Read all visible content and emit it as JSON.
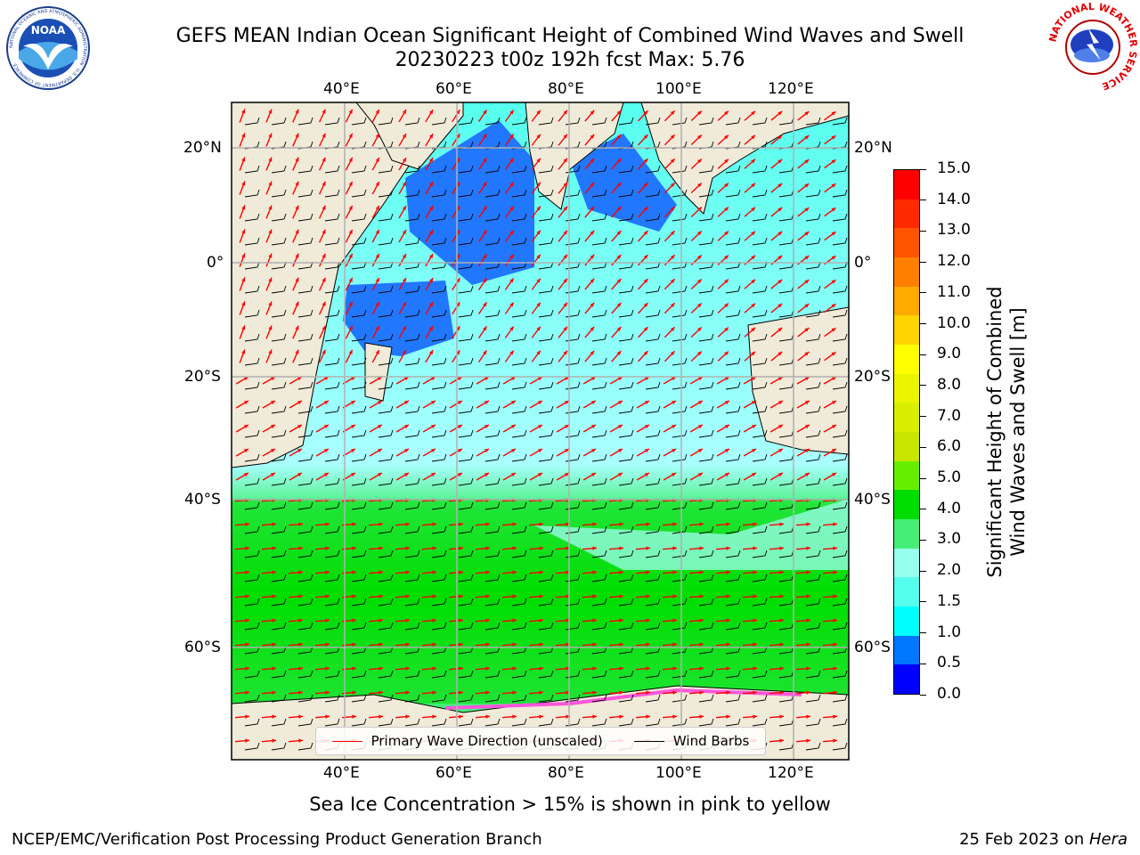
{
  "title": {
    "line1": "GEFS MEAN Indian Ocean Significant Height of Combined Wind Waves and Swell",
    "line2": "20230223 t00z 192h fcst   Max: 5.76"
  },
  "map": {
    "lon_range": [
      20,
      130
    ],
    "lat_range": [
      -72,
      28
    ],
    "lon_ticks": [
      "40°E",
      "60°E",
      "80°E",
      "100°E",
      "120°E"
    ],
    "lat_ticks": [
      "20°N",
      "0°",
      "20°S",
      "40°S",
      "60°S"
    ],
    "legend": [
      {
        "label": "Primary Wave Direction (unscaled)",
        "color": "#ff0000"
      },
      {
        "label": "Wind Barbs",
        "color": "#000000"
      }
    ]
  },
  "colorbar": {
    "label_line1": "Significant Height of Combined",
    "label_line2": "Wind Waves and Swell [m]",
    "ticks": [
      "15.0",
      "14.0",
      "13.0",
      "12.0",
      "11.0",
      "10.0",
      "9.0",
      "8.0",
      "7.0",
      "6.0",
      "5.0",
      "4.0",
      "3.0",
      "2.0",
      "1.5",
      "1.0",
      "0.5",
      "0.0"
    ],
    "colors": [
      "#ff0000",
      "#ff2a00",
      "#ff5500",
      "#ff7f00",
      "#ffaa00",
      "#ffd400",
      "#ffff00",
      "#ecf500",
      "#d9ee00",
      "#c6e600",
      "#66ee00",
      "#00dd00",
      "#44ee77",
      "#99ffee",
      "#55ffee",
      "#00ffff",
      "#0077ff",
      "#0000ff"
    ]
  },
  "annotation": "Sea Ice Concentration > 15% is shown in pink to yellow",
  "footer": {
    "left": "NCEP/EMC/Verification Post Processing Product Generation Branch",
    "right_prefix": "25 Feb 2023 on ",
    "right_host": "Hera"
  },
  "logos": {
    "noaa_text": "NOAA",
    "noaa_ring": "NATIONAL OCEANIC AND ATMOSPHERIC ADMINISTRATION · U.S. DEPARTMENT OF COMMERCE",
    "nws_ring": "NATIONAL WEATHER SERVICE"
  }
}
